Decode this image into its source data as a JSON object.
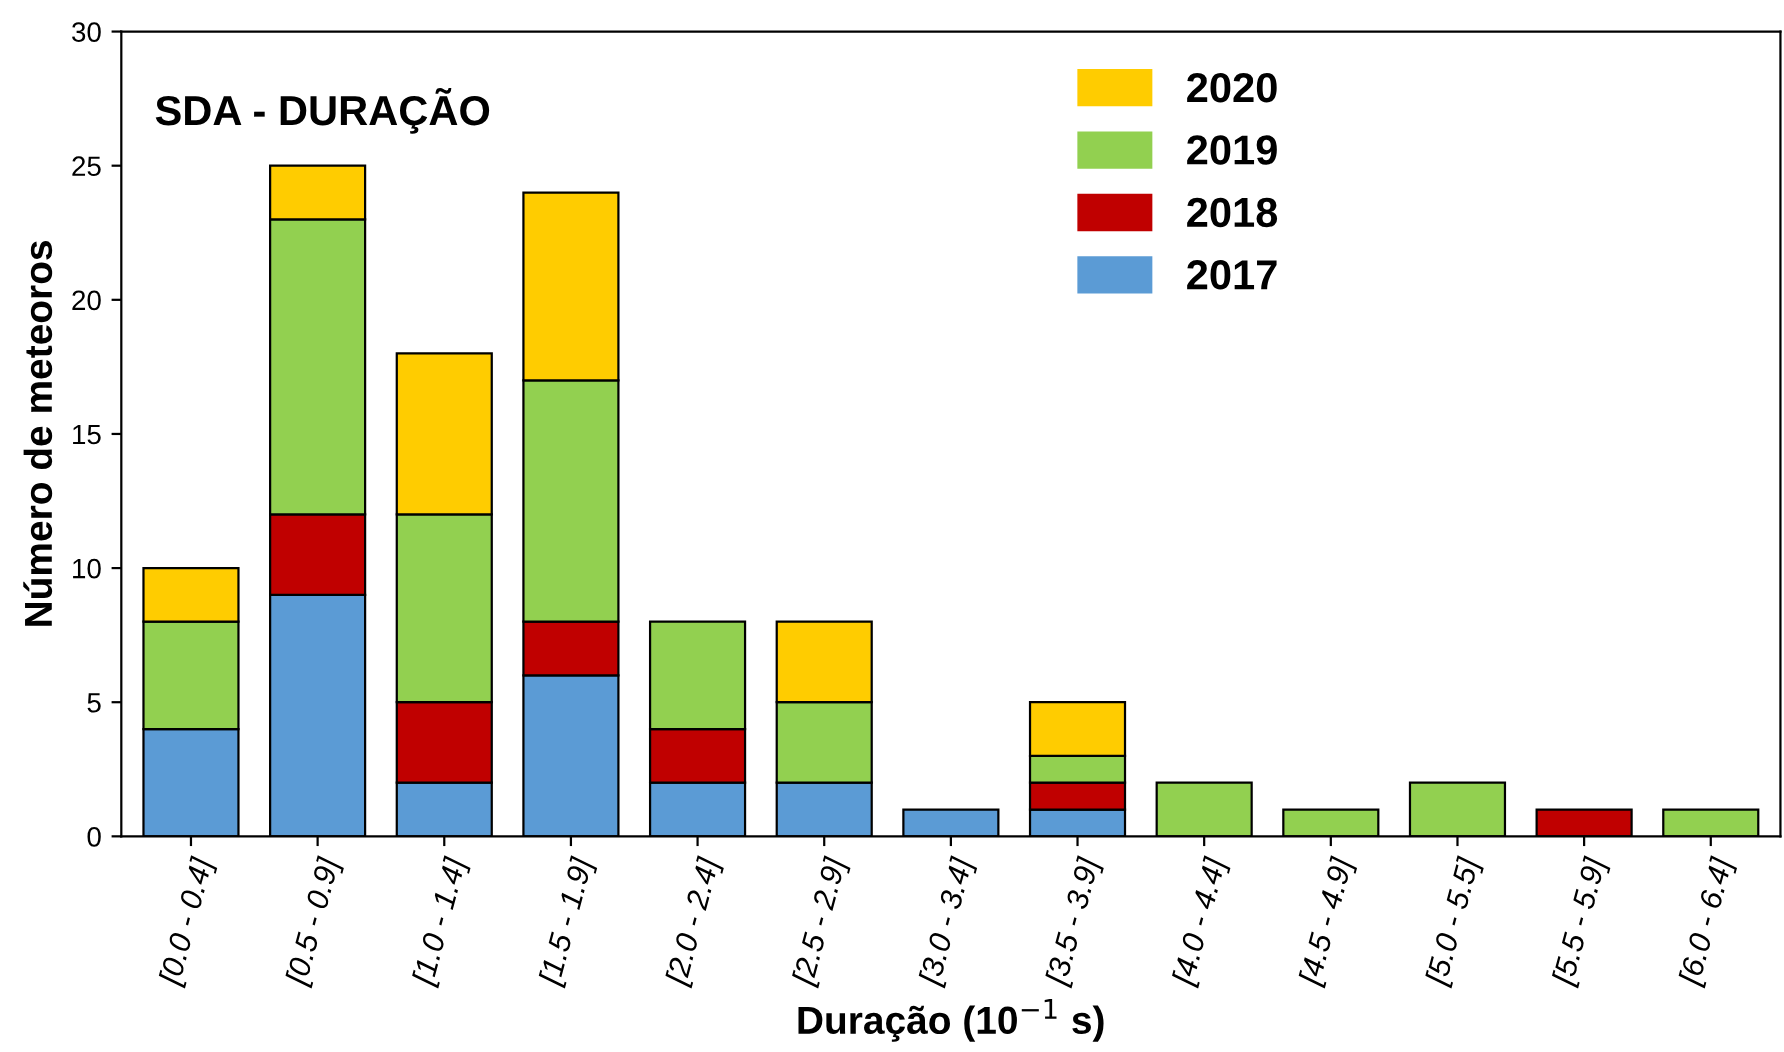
{
  "chart_data": {
    "type": "bar",
    "stacked": true,
    "title": "SDA - DURAÇÃO",
    "xlabel": "Duração (10$^{−1}$ s)",
    "ylabel": "Número de meteoros",
    "categories": [
      "[0.0 - 0.4]",
      "[0.5 - 0.9]",
      "[1.0 - 1.4]",
      "[1.5 - 1.9]",
      "[2.0 - 2.4]",
      "[2.5 - 2.9]",
      "[3.0 - 3.4]",
      "[3.5 - 3.9]",
      "[4.0 - 4.4]",
      "[4.5 - 4.9]",
      "[5.0 - 5.5]",
      "[5.5 - 5.9]",
      "[6.0 - 6.4]"
    ],
    "series": [
      {
        "name": "2017",
        "color": "#5b9bd5",
        "values": [
          4,
          9,
          2,
          6,
          2,
          2,
          1,
          1,
          0,
          0,
          0,
          0,
          0
        ]
      },
      {
        "name": "2018",
        "color": "#c00000",
        "values": [
          0,
          3,
          3,
          2,
          2,
          0,
          0,
          1,
          0,
          0,
          0,
          1,
          0
        ]
      },
      {
        "name": "2019",
        "color": "#92d050",
        "values": [
          4,
          11,
          7,
          9,
          4,
          3,
          0,
          1,
          2,
          1,
          2,
          0,
          1
        ]
      },
      {
        "name": "2020",
        "color": "#ffcc00",
        "values": [
          2,
          2,
          6,
          7,
          0,
          3,
          0,
          2,
          0,
          0,
          0,
          0,
          0
        ]
      }
    ],
    "ylim": [
      0,
      30
    ],
    "yticks": [
      0,
      5,
      10,
      15,
      20,
      25,
      30
    ],
    "grid": false,
    "legend": "top right"
  }
}
